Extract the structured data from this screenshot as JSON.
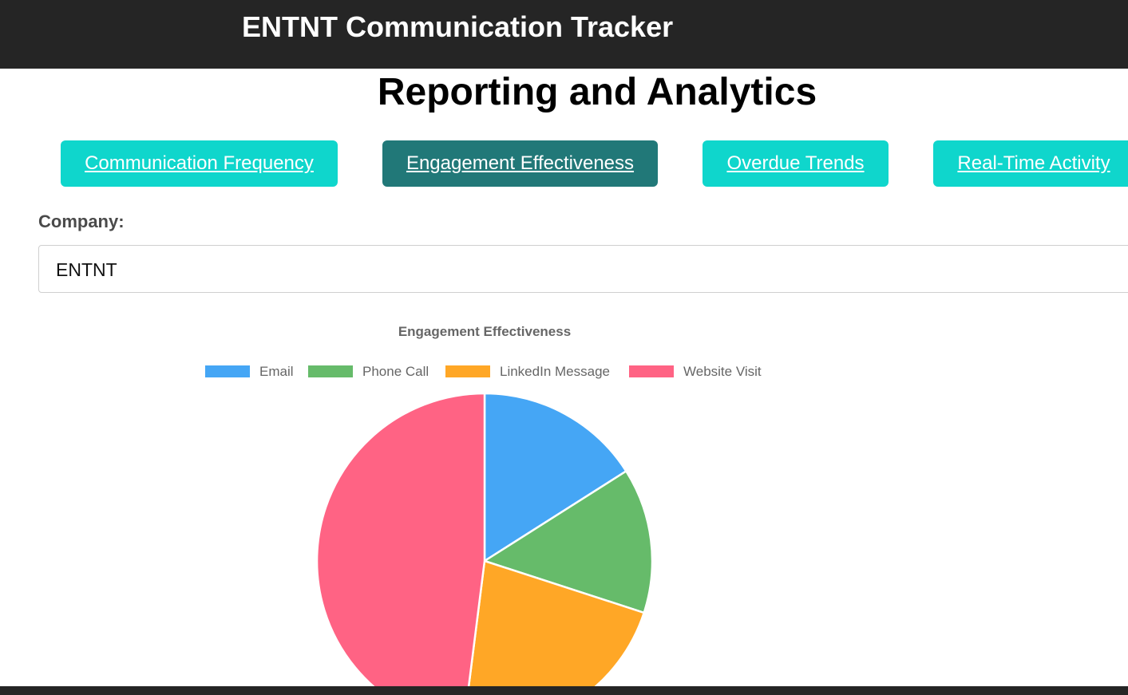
{
  "header": {
    "app_title": "ENTNT Communication Tracker"
  },
  "page": {
    "title": "Reporting and Analytics"
  },
  "tabs": [
    {
      "label": "Communication Frequency",
      "active": false
    },
    {
      "label": "Engagement Effectiveness",
      "active": true
    },
    {
      "label": "Overdue Trends",
      "active": false
    },
    {
      "label": "Real-Time Activity",
      "active": false
    }
  ],
  "filters": {
    "company_label": "Company:",
    "company_value": "ENTNT"
  },
  "colors": {
    "header_bg": "#252525",
    "tab_bg": "#0fd6cc",
    "tab_active_bg": "#217878"
  },
  "chart_data": {
    "type": "pie",
    "title": "Engagement Effectiveness",
    "legend_position": "top",
    "series": [
      {
        "name": "Email",
        "value": 16,
        "color": "#45a6f5"
      },
      {
        "name": "Phone Call",
        "value": 14,
        "color": "#66bb6a"
      },
      {
        "name": "LinkedIn Message",
        "value": 22,
        "color": "#ffa726"
      },
      {
        "name": "Website Visit",
        "value": 48,
        "color": "#ff6384"
      }
    ]
  }
}
